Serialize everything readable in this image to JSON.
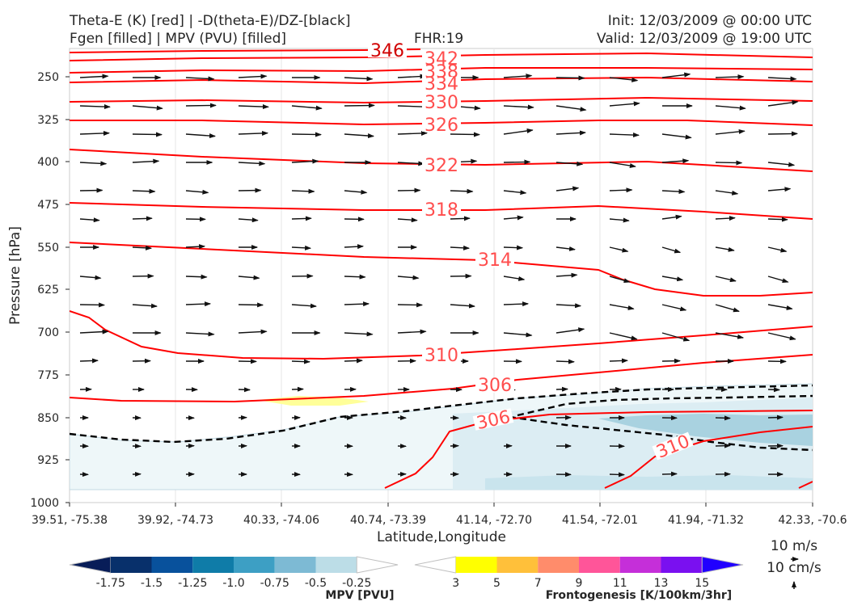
{
  "header": {
    "title_left_1": "Theta-E (K) [red] | -D(theta-E)/DZ-[black]",
    "title_left_2": "Fgen [filled] | MPV (PVU) [filled]",
    "fhr": "FHR:19",
    "init": "Init: 12/03/2009 @ 00:00 UTC",
    "valid": "Valid: 12/03/2009 @ 19:00 UTC"
  },
  "axes": {
    "ylabel": "Pressure [hPa]",
    "xlabel": "Latitude,Longitude",
    "yticks": [
      "250",
      "325",
      "400",
      "475",
      "550",
      "625",
      "700",
      "775",
      "850",
      "925",
      "1000"
    ],
    "xticks": [
      "39.51, -75.38",
      "39.92, -74.73",
      "40.33, -74.06",
      "40.74, -73.39",
      "41.14, -72.70",
      "41.54, -72.01",
      "41.94, -71.32",
      "42.33, -70.6"
    ]
  },
  "contour_labels": [
    "346",
    "342",
    "338",
    "334",
    "330",
    "326",
    "322",
    "318",
    "314",
    "310",
    "306",
    "306",
    "310"
  ],
  "colorbar_mpv": {
    "label": "MPV [PVU]",
    "ticks": [
      "-1.75",
      "-1.5",
      "-1.25",
      "-1.0",
      "-0.75",
      "-0.5",
      "-0.25"
    ],
    "colors": [
      "#081d58",
      "#08306b",
      "#08519c",
      "#0f7ca8",
      "#3d9fc4",
      "#7dbad4",
      "#bcdde7",
      "#ffffff"
    ]
  },
  "colorbar_fgen": {
    "label": "Frontogenesis [K/100km/3hr]",
    "ticks": [
      "3",
      "5",
      "7",
      "9",
      "11",
      "13",
      "15"
    ],
    "colors": [
      "#ffffff",
      "#ffff00",
      "#ffc03a",
      "#ff8c6b",
      "#ff5599",
      "#c52fd9",
      "#7a10f0",
      "#2000ff"
    ]
  },
  "wind_reference": {
    "label_1": "10 m/s",
    "label_2": "10 cm/s"
  },
  "chart_data": {
    "type": "contour",
    "title": "Theta-E (K) [red] | -D(theta-E)/DZ-[black] / Fgen [filled] | MPV (PVU) [filled]",
    "xlabel": "Latitude,Longitude",
    "ylabel": "Pressure [hPa]",
    "y_range_hPa": [
      1000,
      200
    ],
    "y_scale": "log",
    "x_categories": [
      "39.51, -75.38",
      "39.92, -74.73",
      "40.33, -74.06",
      "40.74, -73.39",
      "41.14, -72.70",
      "41.54, -72.01",
      "41.94, -71.32",
      "42.33, -70.6"
    ],
    "theta_e_contours_K": [
      346,
      342,
      338,
      334,
      330,
      326,
      322,
      318,
      314,
      310,
      306
    ],
    "series": [
      {
        "name": "Theta-E (K) [red]",
        "values": [
          346,
          342,
          338,
          334,
          330,
          326,
          322,
          318,
          314,
          310,
          306,
          306,
          310
        ]
      },
      {
        "name": "Fgen [filled]",
        "values": [
          3
        ]
      },
      {
        "name": "MPV (PVU) [filled]",
        "values": [
          -0.25,
          -0.5,
          -0.75
        ]
      }
    ],
    "grid": true
  }
}
